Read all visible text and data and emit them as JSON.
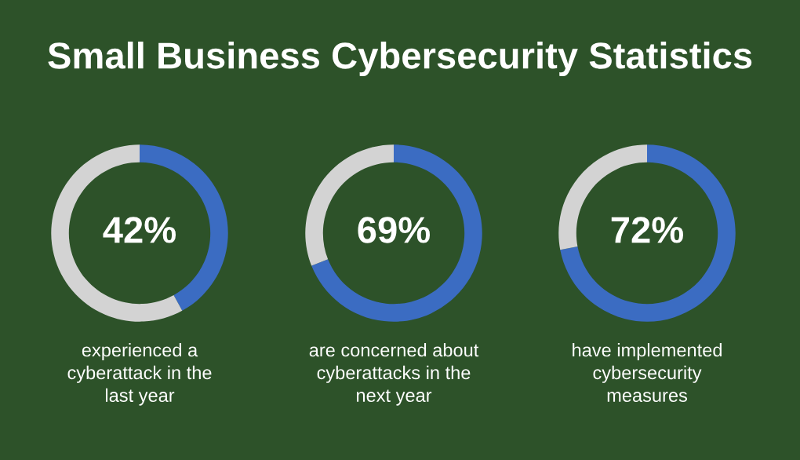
{
  "chart_data": [
    {
      "type": "donut",
      "title": "Small Business Cybersecurity Statistics",
      "categories": [
        null,
        null
      ],
      "values": [
        42,
        58
      ],
      "colors": [
        "#3b6cc2",
        "#d3d3d3"
      ],
      "value_labels": [
        "42%",
        null
      ],
      "annotations": [
        "experienced a\ncyberattack in the\nlast year"
      ]
    },
    {
      "type": "donut",
      "categories": [
        null,
        null
      ],
      "values": [
        69,
        31
      ],
      "colors": [
        "#3b6cc2",
        "#d3d3d3"
      ],
      "value_labels": [
        "69%",
        null
      ],
      "annotations": [
        "are concerned about\ncyberattacks in the\nnext year"
      ]
    },
    {
      "type": "donut",
      "categories": [
        null,
        null
      ],
      "values": [
        72,
        28
      ],
      "colors": [
        "#3b6cc2",
        "#d3d3d3"
      ],
      "value_labels": [
        "72%",
        null
      ],
      "annotations": [
        "have implemented\ncybersecurity\nmeasures"
      ]
    }
  ]
}
